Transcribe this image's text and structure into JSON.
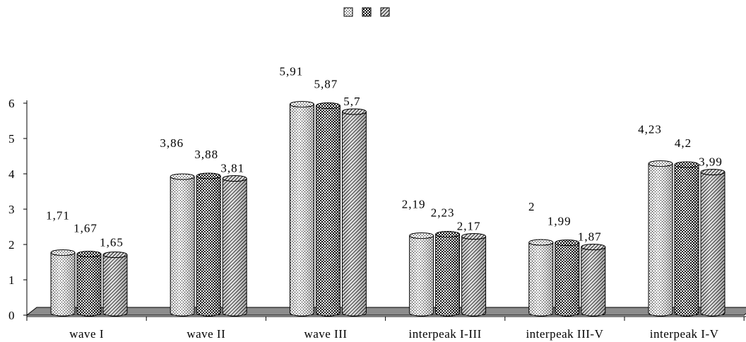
{
  "chart_data": {
    "type": "bar",
    "categories": [
      "wave I",
      "wave II",
      "wave III",
      "interpeak I-III",
      "interpeak III-V",
      "interpeak I-V"
    ],
    "series": [
      {
        "values": [
          1.71,
          3.86,
          5.91,
          2.19,
          2,
          4.23
        ],
        "labels": [
          "1,71",
          "3,86",
          "5,91",
          "2,19",
          "2",
          "4,23"
        ],
        "pattern": "dots-light"
      },
      {
        "values": [
          1.67,
          3.88,
          5.87,
          2.23,
          1.99,
          4.2
        ],
        "labels": [
          "1,67",
          "3,88",
          "5,87",
          "2,23",
          "1,99",
          "4,2"
        ],
        "pattern": "checker-dark"
      },
      {
        "values": [
          1.65,
          3.81,
          5.7,
          2.17,
          1.87,
          3.99
        ],
        "labels": [
          "1,65",
          "3,81",
          "5,7",
          "2,17",
          "1,87",
          "3,99"
        ],
        "pattern": "diagonal-hatch"
      }
    ],
    "yticks": [
      "0",
      "1",
      "2",
      "3",
      "4",
      "5",
      "6"
    ],
    "ylim": [
      0,
      6
    ],
    "grid": false,
    "legend": "top-center",
    "style": "3d-cylinder",
    "colors": {
      "floor": "#8c8c8c",
      "axis": "#000000",
      "background": "#ffffff"
    }
  }
}
